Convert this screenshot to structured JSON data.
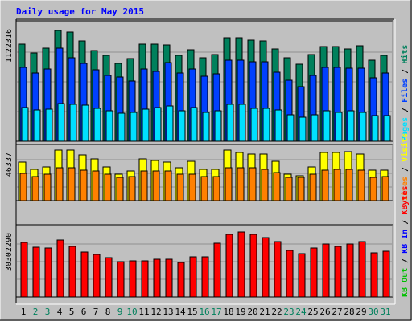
{
  "chart_data": {
    "type": "bar",
    "title": "Daily usage for May 2015",
    "categories": [
      "1",
      "2",
      "3",
      "4",
      "5",
      "6",
      "7",
      "8",
      "9",
      "10",
      "11",
      "12",
      "13",
      "14",
      "15",
      "16",
      "17",
      "18",
      "19",
      "20",
      "21",
      "22",
      "23",
      "24",
      "25",
      "26",
      "27",
      "28",
      "29",
      "30",
      "31"
    ],
    "weekend_days": [
      "2",
      "3",
      "9",
      "10",
      "16",
      "17",
      "23",
      "24",
      "30",
      "31"
    ],
    "panels": [
      {
        "id": "hits-files-pages",
        "axis_label": "1122316",
        "ylim": [
          0,
          1220000
        ],
        "series": [
          {
            "name": "Hits",
            "color": "#00805c",
            "values": [
              1000000,
              910000,
              960000,
              1140000,
              1120000,
              1030000,
              930000,
              880000,
              800000,
              850000,
              1000000,
              1000000,
              990000,
              880000,
              940000,
              860000,
              890000,
              1060000,
              1060000,
              1040000,
              1030000,
              950000,
              860000,
              790000,
              890000,
              970000,
              970000,
              950000,
              980000,
              830000,
              880000
            ]
          },
          {
            "name": "Files",
            "color": "#0040ff",
            "values": [
              760000,
              700000,
              740000,
              960000,
              860000,
              800000,
              730000,
              680000,
              660000,
              620000,
              740000,
              720000,
              810000,
              700000,
              740000,
              670000,
              690000,
              830000,
              830000,
              820000,
              820000,
              710000,
              630000,
              560000,
              680000,
              760000,
              760000,
              750000,
              750000,
              650000,
              700000
            ]
          },
          {
            "name": "Pages",
            "color": "#00e0ff",
            "values": [
              350000,
              320000,
              330000,
              390000,
              380000,
              370000,
              340000,
              310000,
              290000,
              300000,
              330000,
              350000,
              360000,
              310000,
              350000,
              300000,
              310000,
              380000,
              380000,
              340000,
              340000,
              320000,
              270000,
              250000,
              270000,
              310000,
              300000,
              310000,
              300000,
              260000,
              260000
            ]
          }
        ],
        "right_labels": [
          "Hits",
          "/",
          "Files",
          "/",
          "Pages"
        ]
      },
      {
        "id": "visits-sites",
        "axis_label": "46337",
        "ylim": [
          0,
          50000
        ],
        "series": [
          {
            "name": "Visits",
            "color": "#ffff00",
            "values": [
              35000,
              29000,
              31000,
              46000,
              46000,
              42000,
              38000,
              31000,
              24000,
              27000,
              38000,
              37000,
              35000,
              30000,
              36000,
              29000,
              29000,
              46000,
              44000,
              43000,
              43000,
              36000,
              24000,
              23000,
              31000,
              44000,
              44000,
              45000,
              43000,
              28000,
              28000
            ]
          },
          {
            "name": "Sites",
            "color": "#ff8000",
            "values": [
              25000,
              22000,
              24000,
              30000,
              30000,
              28000,
              27000,
              24000,
              21000,
              22000,
              27000,
              27000,
              27000,
              24000,
              24000,
              22000,
              22000,
              30000,
              30000,
              30000,
              29000,
              26000,
              21000,
              21000,
              24000,
              28000,
              29000,
              29000,
              28000,
              21000,
              22000
            ]
          }
        ],
        "right_labels": [
          "Visits",
          "/",
          "Sites"
        ]
      },
      {
        "id": "kbytes",
        "axis_label": "30302290",
        "ylim": [
          0,
          33000000
        ],
        "series": [
          {
            "name": "KBytes",
            "color": "#ff0000",
            "values": [
              25400000,
              23100000,
              23000000,
              26500000,
              23700000,
              21000000,
              20000000,
              18500000,
              16500000,
              16800000,
              17000000,
              17700000,
              17500000,
              16000000,
              18700000,
              18800000,
              25000000,
              29400000,
              30300000,
              29200000,
              27800000,
              25800000,
              21800000,
              20200000,
              22700000,
              24700000,
              23500000,
              24800000,
              25800000,
              20800000,
              21400000
            ]
          }
        ],
        "right_labels": [
          "KBytes",
          "/",
          "KB In",
          "/",
          "KB Out"
        ],
        "right_label_colors": [
          "#ff0000",
          "#000000",
          "#0000ff",
          "#000000",
          "#00c000"
        ]
      }
    ]
  },
  "colors": {
    "background": "#c0c0c0",
    "frame": "#ffffff",
    "title": "#0000ff",
    "weekday_label": "#000000",
    "weekend_label": "#00805c"
  }
}
